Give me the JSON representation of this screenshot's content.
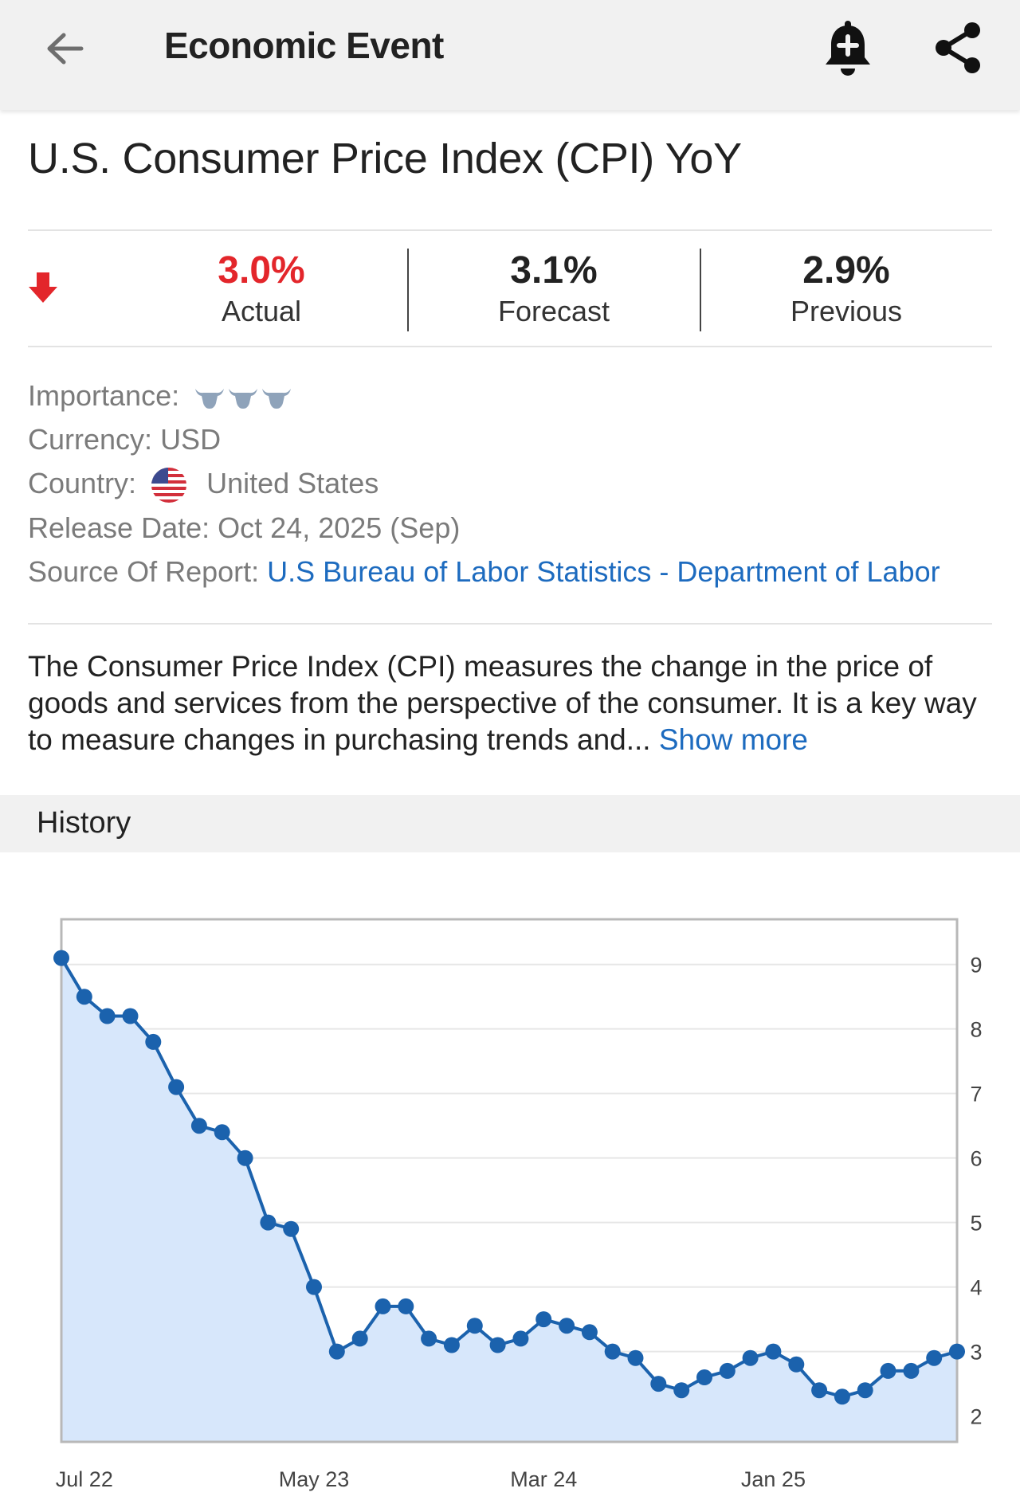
{
  "appbar": {
    "title": "Economic Event",
    "back_icon": "arrow-left-icon",
    "bell_icon": "bell-plus-icon",
    "share_icon": "share-icon"
  },
  "event": {
    "title": "U.S. Consumer Price Index (CPI) YoY"
  },
  "stats": {
    "direction_icon": "arrow-down-icon",
    "actual_value": "3.0%",
    "actual_label": "Actual",
    "forecast_value": "3.1%",
    "forecast_label": "Forecast",
    "previous_value": "2.9%",
    "previous_label": "Previous",
    "actual_color": "#e3262b"
  },
  "info": {
    "importance_label": "Importance:",
    "importance_level": 3,
    "currency_label": "Currency:",
    "currency_value": "USD",
    "country_label": "Country:",
    "country_value": "United States",
    "release_label": "Release Date:",
    "release_value": "Oct 24, 2025 (Sep)",
    "source_label": "Source Of Report:",
    "source_value": "U.S Bureau of Labor Statistics - Department of Labor"
  },
  "description": {
    "text": "The Consumer Price Index (CPI) measures the change in the price of goods and services from the perspective of the consumer. It is a key way to measure changes in purchasing trends and...",
    "show_more": "Show more"
  },
  "history": {
    "label": "History"
  },
  "chart_data": {
    "type": "area",
    "title": "",
    "xlabel": "",
    "ylabel": "",
    "x_tick_labels": [
      "Jul 22",
      "May 23",
      "Mar 24",
      "Jan 25"
    ],
    "x_tick_index": [
      1,
      11,
      21,
      31
    ],
    "y_ticks": [
      2,
      3,
      4,
      5,
      6,
      7,
      8,
      9
    ],
    "ylim": [
      1.6,
      9.7
    ],
    "grid": true,
    "axis_side": "right",
    "line_color": "#1b62ad",
    "fill_color": "#d7e7fb",
    "series": [
      {
        "values": [
          9.1,
          8.5,
          8.2,
          8.2,
          7.8,
          7.1,
          6.5,
          6.4,
          6.0,
          5.0,
          4.9,
          4.0,
          3.0,
          3.2,
          3.7,
          3.7,
          3.2,
          3.1,
          3.4,
          3.1,
          3.2,
          3.5,
          3.4,
          3.3,
          3.0,
          2.9,
          2.5,
          2.4,
          2.6,
          2.7,
          2.9,
          3.0,
          2.8,
          2.4,
          2.3,
          2.4,
          2.7,
          2.7,
          2.9,
          3.0
        ]
      }
    ]
  }
}
